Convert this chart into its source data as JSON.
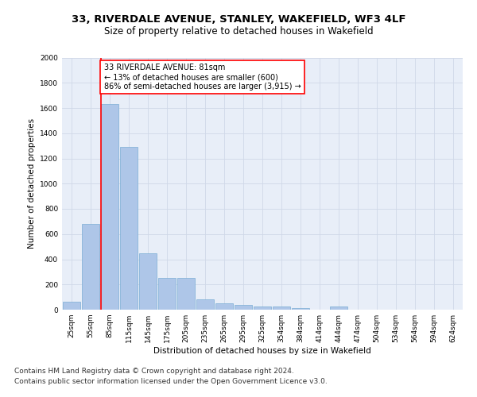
{
  "title1": "33, RIVERDALE AVENUE, STANLEY, WAKEFIELD, WF3 4LF",
  "title2": "Size of property relative to detached houses in Wakefield",
  "xlabel": "Distribution of detached houses by size in Wakefield",
  "ylabel": "Number of detached properties",
  "categories": [
    "25sqm",
    "55sqm",
    "85sqm",
    "115sqm",
    "145sqm",
    "175sqm",
    "205sqm",
    "235sqm",
    "265sqm",
    "295sqm",
    "325sqm",
    "354sqm",
    "384sqm",
    "414sqm",
    "444sqm",
    "474sqm",
    "504sqm",
    "534sqm",
    "564sqm",
    "594sqm",
    "624sqm"
  ],
  "values": [
    60,
    680,
    1630,
    1290,
    450,
    255,
    255,
    85,
    50,
    35,
    25,
    25,
    10,
    0,
    25,
    0,
    0,
    0,
    0,
    0,
    0
  ],
  "bar_color": "#aec6e8",
  "bar_edge_color": "#7aadd4",
  "annotation_box_text": "33 RIVERDALE AVENUE: 81sqm\n← 13% of detached houses are smaller (600)\n86% of semi-detached houses are larger (3,915) →",
  "annotation_box_color": "white",
  "annotation_box_edge_color": "red",
  "property_line_color": "red",
  "ylim": [
    0,
    2000
  ],
  "yticks": [
    0,
    200,
    400,
    600,
    800,
    1000,
    1200,
    1400,
    1600,
    1800,
    2000
  ],
  "grid_color": "#d0d8e8",
  "background_color": "#e8eef8",
  "footer_text1": "Contains HM Land Registry data © Crown copyright and database right 2024.",
  "footer_text2": "Contains public sector information licensed under the Open Government Licence v3.0.",
  "title1_fontsize": 9.5,
  "title2_fontsize": 8.5,
  "axis_label_fontsize": 7.5,
  "tick_fontsize": 6.5,
  "annotation_fontsize": 7,
  "footer_fontsize": 6.5
}
